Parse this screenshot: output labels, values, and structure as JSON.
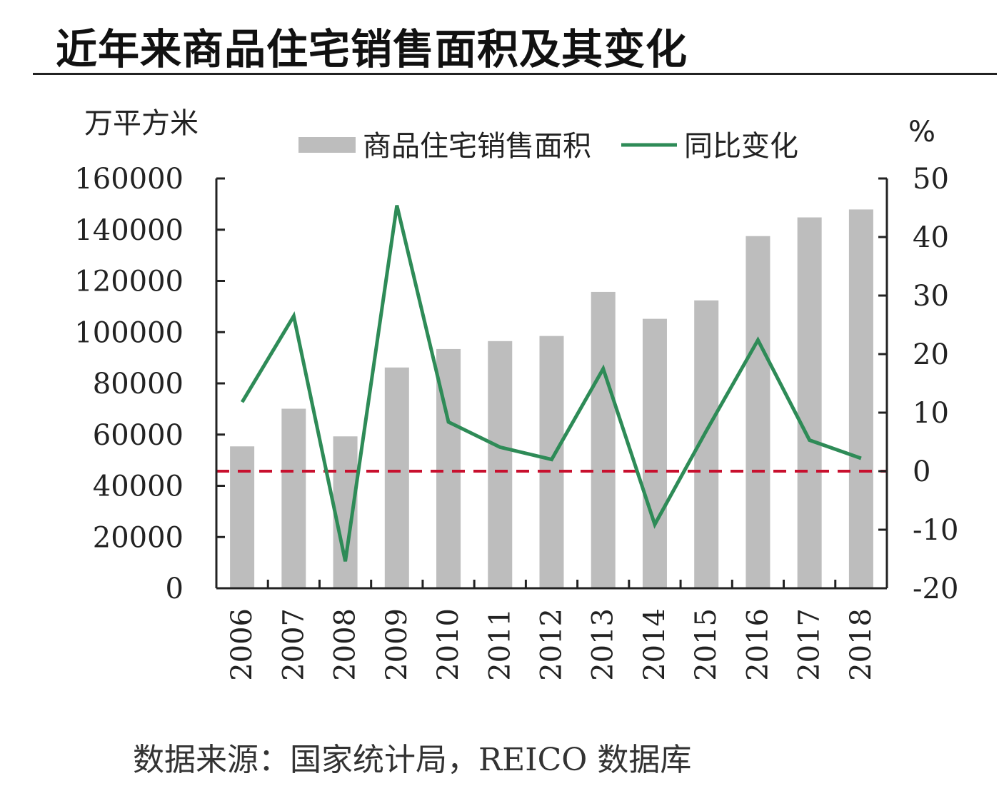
{
  "page": {
    "title": "近年来商品住宅销售面积及其变化",
    "source": "数据来源：国家统计局，REICO 数据库"
  },
  "chart_data": {
    "type": "bar",
    "title": "近年来商品住宅销售面积及其变化",
    "categories": [
      "2006",
      "2007",
      "2008",
      "2009",
      "2010",
      "2011",
      "2012",
      "2013",
      "2014",
      "2015",
      "2016",
      "2017",
      "2018"
    ],
    "series": [
      {
        "name": "商品住宅销售面积",
        "type": "bar",
        "axis": "left",
        "color": "#bdbdbd",
        "values": [
          55400,
          70100,
          59300,
          86200,
          93400,
          96500,
          98500,
          115700,
          105200,
          112400,
          137500,
          144800,
          147900
        ]
      },
      {
        "name": "同比变化",
        "type": "line",
        "axis": "right",
        "color": "#2e8b57",
        "values": [
          11.8,
          26.5,
          -15.4,
          45.4,
          8.4,
          4.1,
          2.0,
          17.5,
          -9.1,
          6.9,
          22.4,
          5.3,
          2.2
        ]
      }
    ],
    "left_axis": {
      "label": "万平方米",
      "ticks": [
        0,
        20000,
        40000,
        60000,
        80000,
        100000,
        120000,
        140000,
        160000
      ],
      "range": [
        0,
        160000
      ]
    },
    "right_axis": {
      "label": "%",
      "ticks": [
        -20,
        -10,
        0,
        10,
        20,
        30,
        40,
        50
      ],
      "range": [
        -20,
        50
      ]
    },
    "reference_line": {
      "value": 0,
      "axis": "right",
      "style": "dashed",
      "color": "#c8102e"
    },
    "legend": {
      "placement": "top-center"
    }
  }
}
